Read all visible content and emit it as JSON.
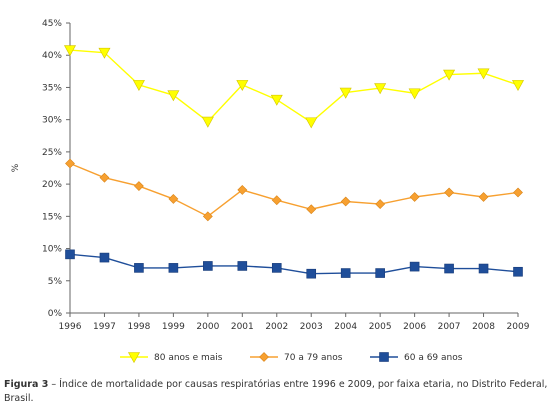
{
  "chart_data": {
    "type": "line",
    "title": "",
    "xlabel": "",
    "ylabel": "%",
    "categories": [
      "1996",
      "1997",
      "1998",
      "1999",
      "2000",
      "2001",
      "2002",
      "2003",
      "2004",
      "2005",
      "2006",
      "2007",
      "2008",
      "2009"
    ],
    "ylim": [
      0,
      45
    ],
    "yticks": [
      0,
      5,
      10,
      15,
      20,
      25,
      30,
      35,
      40,
      45
    ],
    "ytick_labels": [
      "0%",
      "5%",
      "10%",
      "15%",
      "20%",
      "25%",
      "30%",
      "35%",
      "40%",
      "45%"
    ],
    "grid": false,
    "legend_position": "bottom",
    "series": [
      {
        "name": "80 anos e mais",
        "color": "#ffff00",
        "marker": "triangle-down",
        "values": [
          40.8,
          40.4,
          35.4,
          33.8,
          29.7,
          35.4,
          33.1,
          29.6,
          34.2,
          34.9,
          34.1,
          37.0,
          37.2,
          35.4
        ]
      },
      {
        "name": "70 a 79 anos",
        "color": "#f7a030",
        "marker": "diamond",
        "values": [
          23.2,
          21.0,
          19.7,
          17.7,
          15.0,
          19.1,
          17.5,
          16.1,
          17.3,
          16.9,
          18.0,
          18.7,
          18.0,
          18.7
        ]
      },
      {
        "name": "60 a 69 anos",
        "color": "#1f4e9a",
        "marker": "square",
        "values": [
          9.1,
          8.6,
          7.0,
          7.0,
          7.3,
          7.3,
          7.0,
          6.1,
          6.2,
          6.2,
          7.2,
          6.9,
          6.9,
          6.4
        ]
      }
    ]
  },
  "caption": {
    "label": "Figura 3",
    "text": " – Índice de mortalidade por causas respiratórias entre 1996 e 2009, por faixa etaria, no Distrito Federal, Brasil."
  }
}
